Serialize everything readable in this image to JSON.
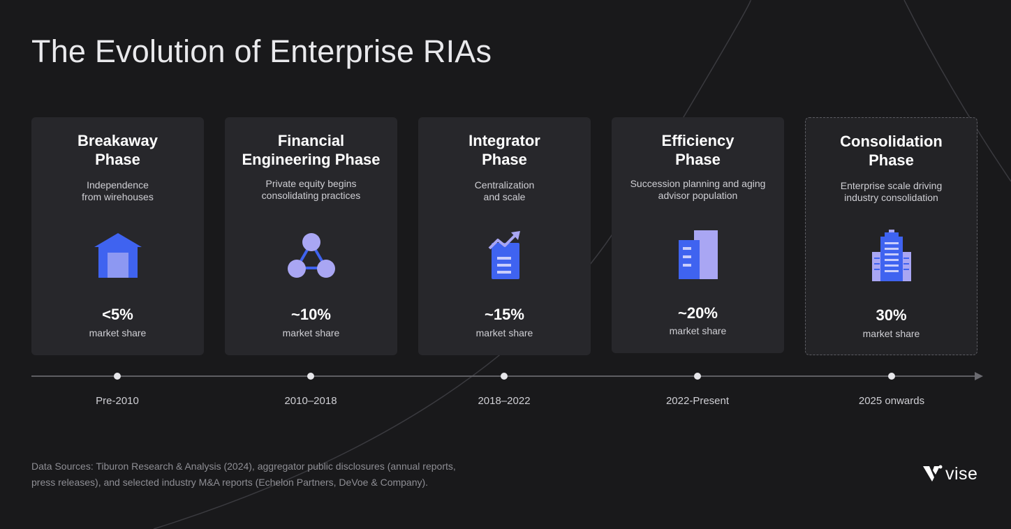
{
  "title": "The Evolution of Enterprise RIAs",
  "colors": {
    "background": "#19191b",
    "card": "#27272b",
    "icon_blue": "#3f63f0",
    "icon_lavender": "#a9a6f3"
  },
  "phases": [
    {
      "title_line1": "Breakaway",
      "title_line2": "Phase",
      "desc_line1": "Independence",
      "desc_line2": "from wirehouses",
      "icon": "house-icon",
      "value": "<5%",
      "unit": "market share",
      "period": "Pre-2010"
    },
    {
      "title_line1": "Financial",
      "title_line2": "Engineering Phase",
      "desc_line1": "Private equity begins",
      "desc_line2": "consolidating practices",
      "icon": "network-icon",
      "value": "~10%",
      "unit": "market share",
      "period": "2010–2018"
    },
    {
      "title_line1": "Integrator",
      "title_line2": "Phase",
      "desc_line1": "Centralization",
      "desc_line2": "and scale",
      "icon": "growth-chart-icon",
      "value": "~15%",
      "unit": "market share",
      "period": "2018–2022"
    },
    {
      "title_line1": "Efficiency",
      "title_line2": "Phase",
      "desc_line1": "Succession planning and aging",
      "desc_line2": "advisor population",
      "icon": "office-buildings-icon",
      "value": "~20%",
      "unit": "market share",
      "period": "2022-Present"
    },
    {
      "title_line1": "Consolidation",
      "title_line2": "Phase",
      "desc_line1": "Enterprise scale driving",
      "desc_line2": "industry consolidation",
      "icon": "skyscraper-icon",
      "value": "30%",
      "unit": "market share",
      "period": "2025 onwards"
    }
  ],
  "sources_line1": "Data Sources: Tiburon Research & Analysis (2024), aggregator public disclosures (annual reports,",
  "sources_line2": "press releases), and selected industry M&A reports (Echelon Partners, DeVoe & Company).",
  "logo_text": "vise"
}
